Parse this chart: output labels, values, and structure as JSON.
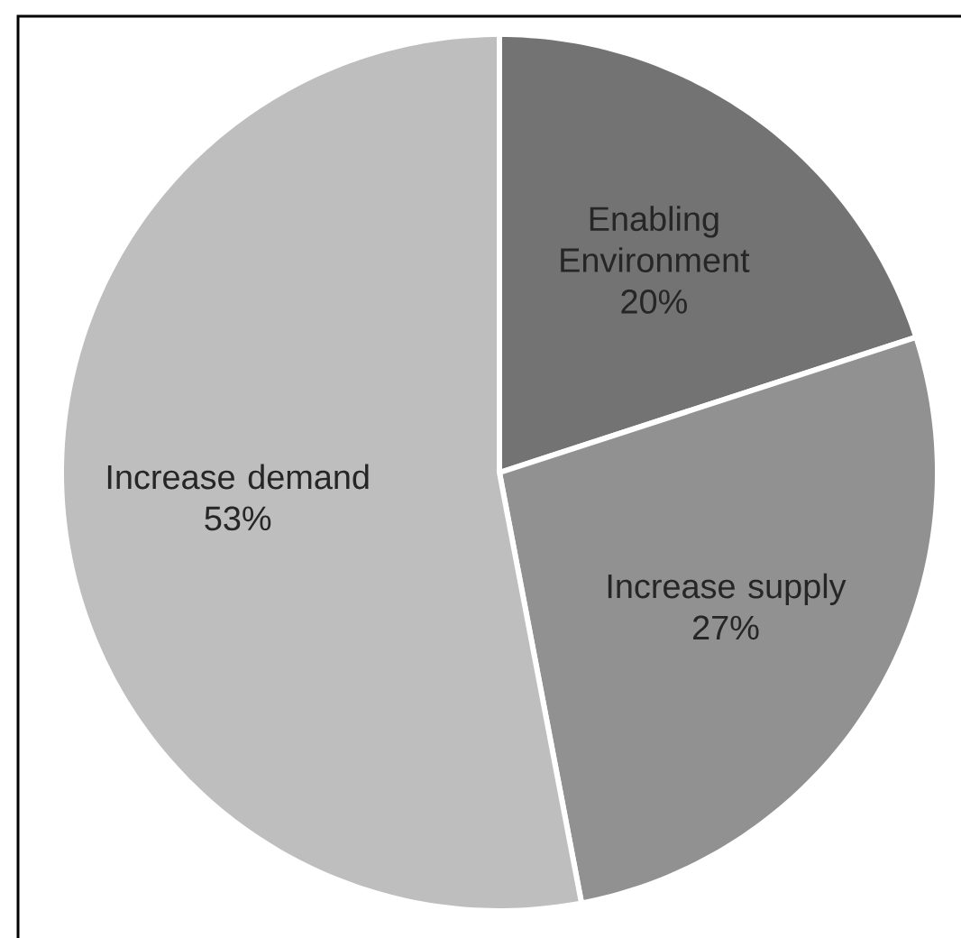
{
  "chart_data": {
    "type": "pie",
    "categories": [
      "Enabling Environment",
      "Increase supply",
      "Increase demand"
    ],
    "values": [
      20,
      27,
      53
    ],
    "value_labels": [
      "20%",
      "27%",
      "53%"
    ],
    "colors": [
      "#737373",
      "#919191",
      "#bebebe"
    ]
  }
}
